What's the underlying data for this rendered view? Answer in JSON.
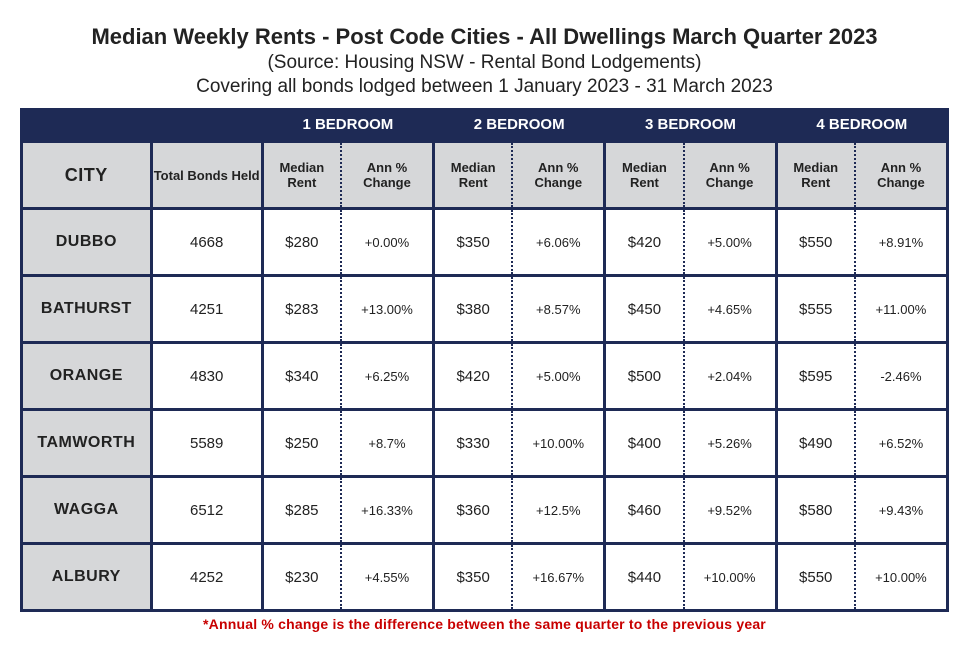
{
  "title": "Median Weekly Rents - Post Code Cities - All Dwellings March Quarter 2023",
  "subtitle": "(Source: Housing NSW - Rental Bond Lodgements)",
  "coverage": "Covering all bonds lodged between 1 January 2023 - 31 March 2023",
  "footnote": "*Annual % change is the difference between the same quarter to the previous year",
  "colors": {
    "header_bg": "#1e2a55",
    "header_text": "#ffffff",
    "subheader_bg": "#d6d7d9",
    "border": "#1e2a55",
    "footnote": "#c80000",
    "cell_bg": "#ffffff",
    "text": "#222222"
  },
  "table": {
    "bedroom_headers": [
      "1 BEDROOM",
      "2 BEDROOM",
      "3 BEDROOM",
      "4 BEDROOM"
    ],
    "sub_headers": {
      "city": "CITY",
      "bonds": "Total Bonds Held",
      "rent": "Median Rent",
      "change": "Ann % Change"
    },
    "rows": [
      {
        "city": "DUBBO",
        "bonds": "4668",
        "b1_rent": "$280",
        "b1_chg": "+0.00%",
        "b2_rent": "$350",
        "b2_chg": "+6.06%",
        "b3_rent": "$420",
        "b3_chg": "+5.00%",
        "b4_rent": "$550",
        "b4_chg": "+8.91%"
      },
      {
        "city": "BATHURST",
        "bonds": "4251",
        "b1_rent": "$283",
        "b1_chg": "+13.00%",
        "b2_rent": "$380",
        "b2_chg": "+8.57%",
        "b3_rent": "$450",
        "b3_chg": "+4.65%",
        "b4_rent": "$555",
        "b4_chg": "+11.00%"
      },
      {
        "city": "ORANGE",
        "bonds": "4830",
        "b1_rent": "$340",
        "b1_chg": "+6.25%",
        "b2_rent": "$420",
        "b2_chg": "+5.00%",
        "b3_rent": "$500",
        "b3_chg": "+2.04%",
        "b4_rent": "$595",
        "b4_chg": "-2.46%"
      },
      {
        "city": "TAMWORTH",
        "bonds": "5589",
        "b1_rent": "$250",
        "b1_chg": "+8.7%",
        "b2_rent": "$330",
        "b2_chg": "+10.00%",
        "b3_rent": "$400",
        "b3_chg": "+5.26%",
        "b4_rent": "$490",
        "b4_chg": "+6.52%"
      },
      {
        "city": "WAGGA",
        "bonds": "6512",
        "b1_rent": "$285",
        "b1_chg": "+16.33%",
        "b2_rent": "$360",
        "b2_chg": "+12.5%",
        "b3_rent": "$460",
        "b3_chg": "+9.52%",
        "b4_rent": "$580",
        "b4_chg": "+9.43%"
      },
      {
        "city": "ALBURY",
        "bonds": "4252",
        "b1_rent": "$230",
        "b1_chg": "+4.55%",
        "b2_rent": "$350",
        "b2_chg": "+16.67%",
        "b3_rent": "$440",
        "b3_chg": "+10.00%",
        "b4_rent": "$550",
        "b4_chg": "+10.00%"
      }
    ]
  }
}
